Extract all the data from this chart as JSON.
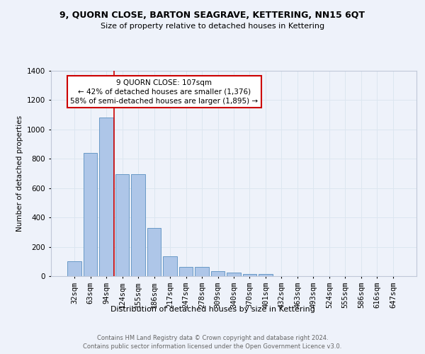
{
  "title": "9, QUORN CLOSE, BARTON SEAGRAVE, KETTERING, NN15 6QT",
  "subtitle": "Size of property relative to detached houses in Kettering",
  "xlabel": "Distribution of detached houses by size in Kettering",
  "ylabel": "Number of detached properties",
  "footer_line1": "Contains HM Land Registry data © Crown copyright and database right 2024.",
  "footer_line2": "Contains public sector information licensed under the Open Government Licence v3.0.",
  "bar_labels": [
    "32sqm",
    "63sqm",
    "94sqm",
    "124sqm",
    "155sqm",
    "186sqm",
    "217sqm",
    "247sqm",
    "278sqm",
    "309sqm",
    "340sqm",
    "370sqm",
    "401sqm",
    "432sqm",
    "463sqm",
    "493sqm",
    "524sqm",
    "555sqm",
    "586sqm",
    "616sqm",
    "647sqm"
  ],
  "bar_values": [
    103,
    838,
    1079,
    697,
    697,
    330,
    135,
    65,
    65,
    32,
    22,
    14,
    14,
    0,
    0,
    0,
    0,
    0,
    0,
    0,
    0
  ],
  "bar_color": "#aec6e8",
  "bar_edge_color": "#5a8fc0",
  "ylim": [
    0,
    1400
  ],
  "yticks": [
    0,
    200,
    400,
    600,
    800,
    1000,
    1200,
    1400
  ],
  "annotation_text": "9 QUORN CLOSE: 107sqm\n← 42% of detached houses are smaller (1,376)\n58% of semi-detached houses are larger (1,895) →",
  "annotation_box_color": "#ffffff",
  "annotation_box_edge_color": "#cc0000",
  "property_size_sqm": 107,
  "grid_color": "#dce6f0",
  "background_color": "#eef2fa"
}
